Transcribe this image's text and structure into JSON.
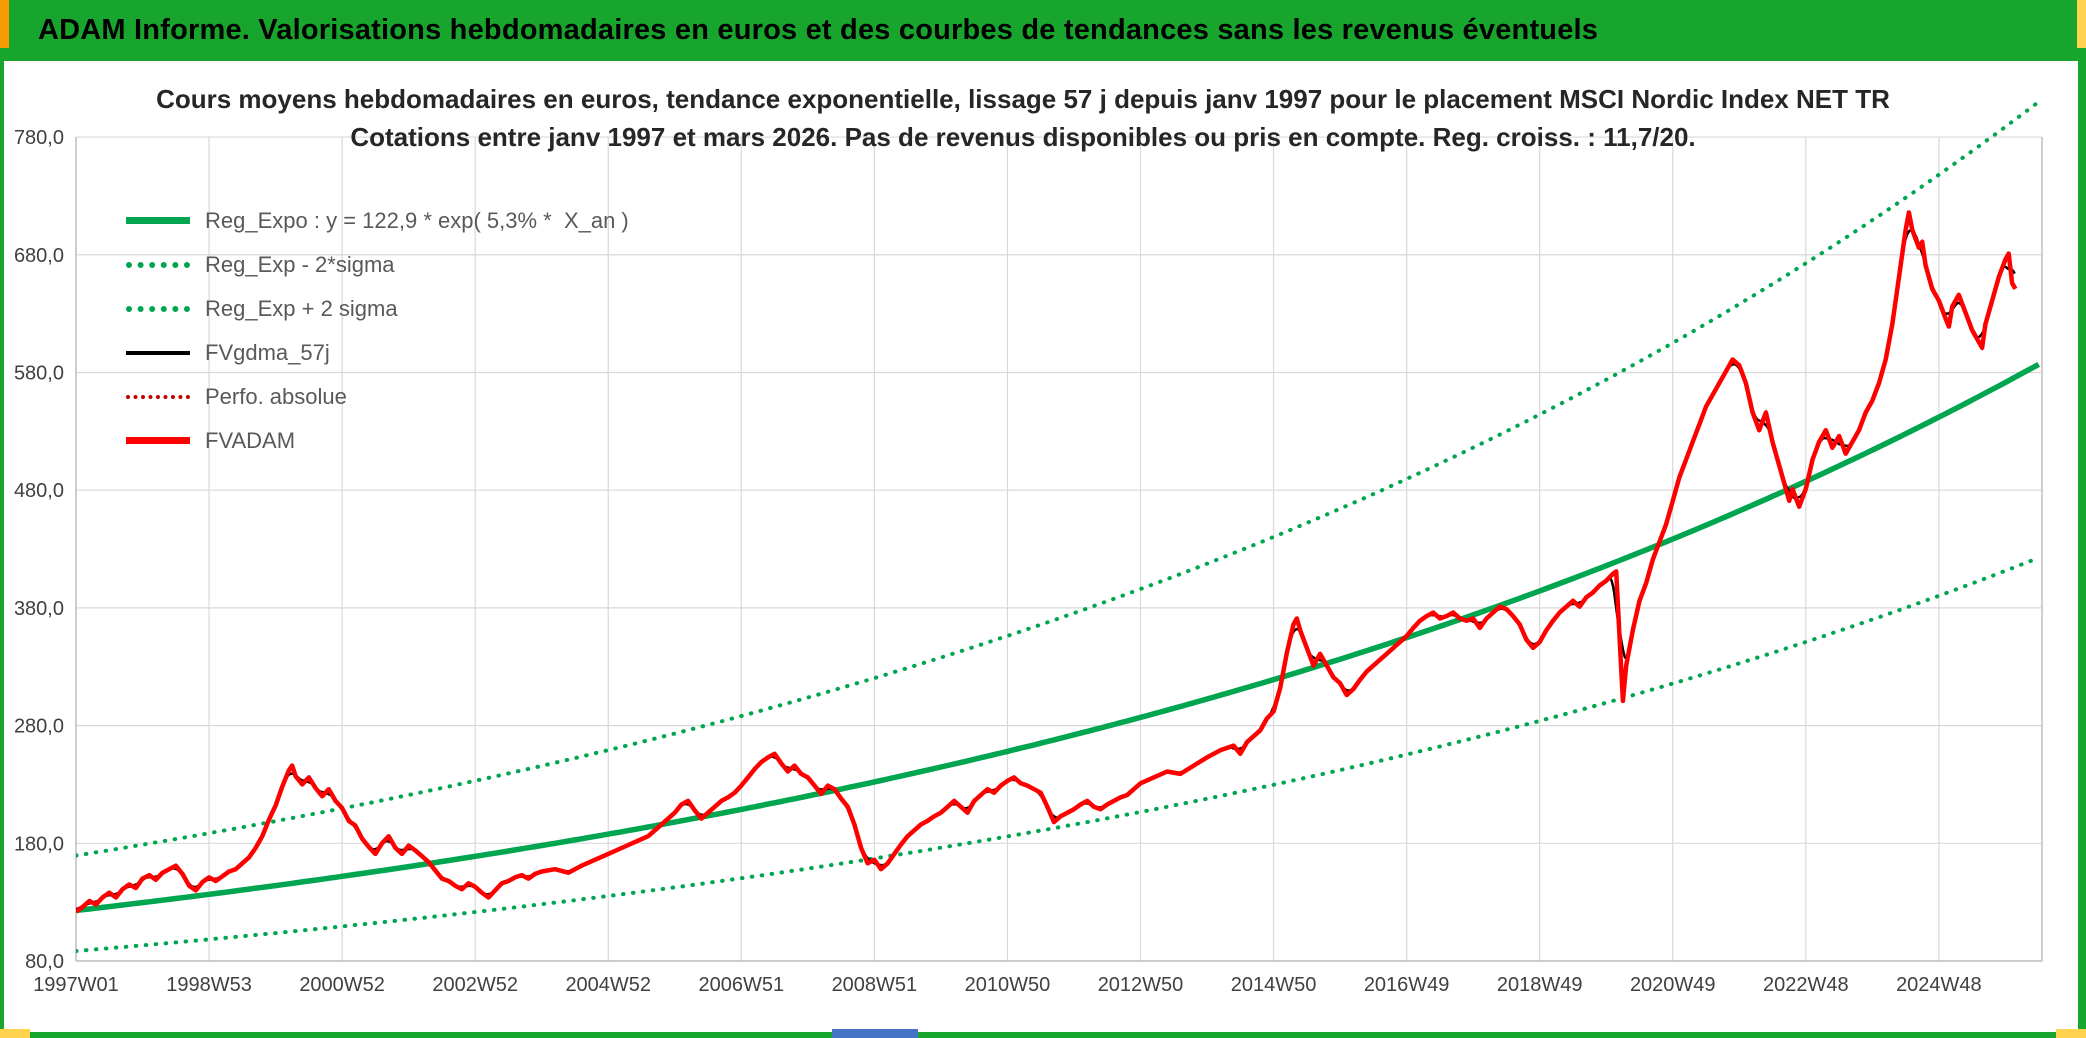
{
  "header": {
    "title": "ADAM Informe. Valorisations hebdomadaires en euros et des courbes de tendances sans les revenus éventuels"
  },
  "colors": {
    "banner_green": "#18a52d",
    "reg_green": "#00a550",
    "series_red": "#ff0000",
    "perfo_dark_red": "#c00000",
    "smooth_black": "#000000",
    "grid": "#d9d9d9",
    "axis_line": "#bfbfbf",
    "axis_text": "#404040",
    "title_text": "#262626",
    "accent_orange": "#f59b00",
    "accent_yellow": "#ffd34d",
    "accent_blue": "#4472c4"
  },
  "chart_data": {
    "type": "line",
    "title": "Cours moyens hebdomadaires en euros, tendance exponentielle, lissage 57 j depuis janv 1997 pour le placement MSCI Nordic Index NET TR",
    "subtitle": "Cotations entre janv 1997 et mars 2026. Pas de revenus disponibles ou pris en compte. Reg. croiss. : 11,7/20.",
    "grid": true,
    "legend_position": "top-left",
    "x_unit": "years_since_jan_1997",
    "x_axis": {
      "domain": [
        0,
        29.55
      ],
      "ticks": [
        {
          "label": "1997W01",
          "t": 0
        },
        {
          "label": "1998W53",
          "t": 2
        },
        {
          "label": "2000W52",
          "t": 4
        },
        {
          "label": "2002W52",
          "t": 6
        },
        {
          "label": "2004W52",
          "t": 8
        },
        {
          "label": "2006W51",
          "t": 10
        },
        {
          "label": "2008W51",
          "t": 12
        },
        {
          "label": "2010W50",
          "t": 14
        },
        {
          "label": "2012W50",
          "t": 16
        },
        {
          "label": "2014W50",
          "t": 18
        },
        {
          "label": "2016W49",
          "t": 20
        },
        {
          "label": "2018W49",
          "t": 22
        },
        {
          "label": "2020W49",
          "t": 24
        },
        {
          "label": "2022W48",
          "t": 26
        },
        {
          "label": "2024W48",
          "t": 28
        }
      ]
    },
    "y_axis": {
      "domain": [
        76.6,
        820
      ],
      "ticks": [
        {
          "label": "780,0",
          "value": 780
        },
        {
          "label": "680,0",
          "value": 680
        },
        {
          "label": "580,0",
          "value": 580
        },
        {
          "label": "480,0",
          "value": 480
        },
        {
          "label": "380,0",
          "value": 380
        },
        {
          "label": "280,0",
          "value": 280
        },
        {
          "label": "180,0",
          "value": 180
        },
        {
          "label": "80,0",
          "value": 80
        }
      ]
    },
    "legend": [
      {
        "label": "Reg_Expo : y = 122,9 * exp( 5,3% *  X_an )",
        "series": "reg_expo"
      },
      {
        "label": "Reg_Exp - 2*sigma",
        "series": "reg_minus_2sigma"
      },
      {
        "label": "Reg_Exp + 2 sigma",
        "series": "reg_plus_2sigma"
      },
      {
        "label": "FVgdma_57j",
        "series": "fvgdma_57j"
      },
      {
        "label": "Perfo. absolue",
        "series": "perfo_absolue"
      },
      {
        "label": "FVADAM",
        "series": "fvadam"
      }
    ],
    "regression": {
      "coefficient": 122.9,
      "annual_rate_pct": 5.3,
      "upper_band_ratio": 1.38,
      "lower_band_ratio": 0.72,
      "growth_score_label": "11,7/20"
    },
    "smoothing_days": 57,
    "fvadam_points": [
      [
        0.0,
        122
      ],
      [
        0.1,
        126
      ],
      [
        0.2,
        131
      ],
      [
        0.3,
        128
      ],
      [
        0.4,
        134
      ],
      [
        0.5,
        138
      ],
      [
        0.6,
        134
      ],
      [
        0.7,
        141
      ],
      [
        0.8,
        145
      ],
      [
        0.9,
        142
      ],
      [
        1.0,
        150
      ],
      [
        1.1,
        153
      ],
      [
        1.2,
        149
      ],
      [
        1.3,
        155
      ],
      [
        1.4,
        158
      ],
      [
        1.5,
        161
      ],
      [
        1.6,
        154
      ],
      [
        1.7,
        144
      ],
      [
        1.8,
        140
      ],
      [
        1.9,
        147
      ],
      [
        2.0,
        151
      ],
      [
        2.1,
        148
      ],
      [
        2.2,
        152
      ],
      [
        2.3,
        156
      ],
      [
        2.4,
        158
      ],
      [
        2.5,
        163
      ],
      [
        2.6,
        168
      ],
      [
        2.7,
        176
      ],
      [
        2.8,
        186
      ],
      [
        2.9,
        200
      ],
      [
        3.0,
        212
      ],
      [
        3.1,
        228
      ],
      [
        3.2,
        242
      ],
      [
        3.25,
        246
      ],
      [
        3.3,
        237
      ],
      [
        3.4,
        230
      ],
      [
        3.5,
        236
      ],
      [
        3.6,
        227
      ],
      [
        3.7,
        220
      ],
      [
        3.8,
        226
      ],
      [
        3.9,
        216
      ],
      [
        4.0,
        210
      ],
      [
        4.1,
        199
      ],
      [
        4.2,
        195
      ],
      [
        4.3,
        184
      ],
      [
        4.4,
        177
      ],
      [
        4.5,
        171
      ],
      [
        4.6,
        180
      ],
      [
        4.7,
        186
      ],
      [
        4.8,
        176
      ],
      [
        4.9,
        171
      ],
      [
        5.0,
        178
      ],
      [
        5.1,
        174
      ],
      [
        5.2,
        169
      ],
      [
        5.3,
        164
      ],
      [
        5.4,
        157
      ],
      [
        5.5,
        150
      ],
      [
        5.6,
        148
      ],
      [
        5.7,
        144
      ],
      [
        5.8,
        141
      ],
      [
        5.9,
        146
      ],
      [
        6.0,
        143
      ],
      [
        6.1,
        138
      ],
      [
        6.2,
        134
      ],
      [
        6.3,
        140
      ],
      [
        6.4,
        146
      ],
      [
        6.5,
        148
      ],
      [
        6.6,
        151
      ],
      [
        6.7,
        153
      ],
      [
        6.8,
        150
      ],
      [
        6.9,
        154
      ],
      [
        7.0,
        156
      ],
      [
        7.2,
        158
      ],
      [
        7.4,
        155
      ],
      [
        7.6,
        161
      ],
      [
        7.8,
        166
      ],
      [
        8.0,
        171
      ],
      [
        8.2,
        176
      ],
      [
        8.4,
        181
      ],
      [
        8.6,
        186
      ],
      [
        8.8,
        196
      ],
      [
        9.0,
        206
      ],
      [
        9.1,
        213
      ],
      [
        9.2,
        216
      ],
      [
        9.3,
        208
      ],
      [
        9.4,
        201
      ],
      [
        9.5,
        206
      ],
      [
        9.6,
        211
      ],
      [
        9.7,
        216
      ],
      [
        9.8,
        219
      ],
      [
        9.9,
        223
      ],
      [
        10.0,
        229
      ],
      [
        10.1,
        236
      ],
      [
        10.2,
        243
      ],
      [
        10.3,
        249
      ],
      [
        10.4,
        253
      ],
      [
        10.5,
        256
      ],
      [
        10.6,
        248
      ],
      [
        10.7,
        241
      ],
      [
        10.8,
        246
      ],
      [
        10.9,
        239
      ],
      [
        11.0,
        236
      ],
      [
        11.1,
        229
      ],
      [
        11.2,
        222
      ],
      [
        11.3,
        229
      ],
      [
        11.4,
        226
      ],
      [
        11.5,
        218
      ],
      [
        11.6,
        211
      ],
      [
        11.7,
        196
      ],
      [
        11.8,
        176
      ],
      [
        11.9,
        163
      ],
      [
        12.0,
        166
      ],
      [
        12.1,
        158
      ],
      [
        12.2,
        163
      ],
      [
        12.3,
        171
      ],
      [
        12.4,
        179
      ],
      [
        12.5,
        186
      ],
      [
        12.6,
        191
      ],
      [
        12.7,
        196
      ],
      [
        12.8,
        199
      ],
      [
        12.9,
        203
      ],
      [
        13.0,
        206
      ],
      [
        13.1,
        211
      ],
      [
        13.2,
        216
      ],
      [
        13.3,
        211
      ],
      [
        13.4,
        206
      ],
      [
        13.5,
        216
      ],
      [
        13.6,
        221
      ],
      [
        13.7,
        226
      ],
      [
        13.8,
        223
      ],
      [
        13.9,
        229
      ],
      [
        14.0,
        233
      ],
      [
        14.1,
        236
      ],
      [
        14.2,
        231
      ],
      [
        14.3,
        229
      ],
      [
        14.4,
        226
      ],
      [
        14.5,
        223
      ],
      [
        14.6,
        211
      ],
      [
        14.7,
        198
      ],
      [
        14.8,
        203
      ],
      [
        14.9,
        206
      ],
      [
        15.0,
        209
      ],
      [
        15.1,
        213
      ],
      [
        15.2,
        216
      ],
      [
        15.3,
        211
      ],
      [
        15.4,
        209
      ],
      [
        15.5,
        213
      ],
      [
        15.6,
        216
      ],
      [
        15.7,
        219
      ],
      [
        15.8,
        221
      ],
      [
        15.9,
        226
      ],
      [
        16.0,
        231
      ],
      [
        16.2,
        236
      ],
      [
        16.4,
        241
      ],
      [
        16.6,
        239
      ],
      [
        16.8,
        246
      ],
      [
        17.0,
        253
      ],
      [
        17.2,
        259
      ],
      [
        17.4,
        263
      ],
      [
        17.5,
        256
      ],
      [
        17.6,
        266
      ],
      [
        17.8,
        276
      ],
      [
        17.9,
        286
      ],
      [
        18.0,
        292
      ],
      [
        18.1,
        312
      ],
      [
        18.2,
        342
      ],
      [
        18.3,
        366
      ],
      [
        18.35,
        371
      ],
      [
        18.4,
        361
      ],
      [
        18.5,
        346
      ],
      [
        18.6,
        331
      ],
      [
        18.7,
        341
      ],
      [
        18.8,
        331
      ],
      [
        18.9,
        321
      ],
      [
        19.0,
        316
      ],
      [
        19.1,
        306
      ],
      [
        19.2,
        311
      ],
      [
        19.3,
        319
      ],
      [
        19.4,
        326
      ],
      [
        19.5,
        331
      ],
      [
        19.6,
        336
      ],
      [
        19.7,
        341
      ],
      [
        19.8,
        346
      ],
      [
        19.9,
        351
      ],
      [
        20.0,
        356
      ],
      [
        20.1,
        363
      ],
      [
        20.2,
        369
      ],
      [
        20.3,
        373
      ],
      [
        20.4,
        376
      ],
      [
        20.5,
        371
      ],
      [
        20.6,
        373
      ],
      [
        20.7,
        376
      ],
      [
        20.8,
        371
      ],
      [
        20.9,
        369
      ],
      [
        21.0,
        371
      ],
      [
        21.1,
        363
      ],
      [
        21.2,
        371
      ],
      [
        21.3,
        376
      ],
      [
        21.4,
        381
      ],
      [
        21.5,
        379
      ],
      [
        21.6,
        373
      ],
      [
        21.7,
        366
      ],
      [
        21.8,
        353
      ],
      [
        21.9,
        346
      ],
      [
        22.0,
        351
      ],
      [
        22.1,
        361
      ],
      [
        22.2,
        369
      ],
      [
        22.3,
        376
      ],
      [
        22.4,
        381
      ],
      [
        22.5,
        386
      ],
      [
        22.6,
        381
      ],
      [
        22.7,
        389
      ],
      [
        22.8,
        393
      ],
      [
        22.9,
        399
      ],
      [
        23.0,
        403
      ],
      [
        23.1,
        409
      ],
      [
        23.15,
        411
      ],
      [
        23.2,
        356
      ],
      [
        23.25,
        301
      ],
      [
        23.3,
        331
      ],
      [
        23.4,
        361
      ],
      [
        23.5,
        386
      ],
      [
        23.6,
        401
      ],
      [
        23.7,
        421
      ],
      [
        23.8,
        436
      ],
      [
        23.9,
        451
      ],
      [
        24.0,
        471
      ],
      [
        24.1,
        491
      ],
      [
        24.2,
        506
      ],
      [
        24.3,
        521
      ],
      [
        24.4,
        536
      ],
      [
        24.5,
        551
      ],
      [
        24.6,
        561
      ],
      [
        24.7,
        571
      ],
      [
        24.8,
        581
      ],
      [
        24.9,
        591
      ],
      [
        25.0,
        586
      ],
      [
        25.1,
        571
      ],
      [
        25.2,
        546
      ],
      [
        25.3,
        531
      ],
      [
        25.4,
        546
      ],
      [
        25.5,
        521
      ],
      [
        25.6,
        501
      ],
      [
        25.7,
        481
      ],
      [
        25.75,
        471
      ],
      [
        25.8,
        481
      ],
      [
        25.9,
        466
      ],
      [
        26.0,
        481
      ],
      [
        26.1,
        506
      ],
      [
        26.2,
        521
      ],
      [
        26.3,
        531
      ],
      [
        26.4,
        516
      ],
      [
        26.5,
        526
      ],
      [
        26.6,
        511
      ],
      [
        26.7,
        521
      ],
      [
        26.8,
        531
      ],
      [
        26.9,
        546
      ],
      [
        27.0,
        556
      ],
      [
        27.1,
        571
      ],
      [
        27.2,
        591
      ],
      [
        27.3,
        621
      ],
      [
        27.4,
        661
      ],
      [
        27.5,
        701
      ],
      [
        27.55,
        716
      ],
      [
        27.6,
        701
      ],
      [
        27.7,
        686
      ],
      [
        27.75,
        691
      ],
      [
        27.8,
        671
      ],
      [
        27.9,
        651
      ],
      [
        28.0,
        641
      ],
      [
        28.1,
        626
      ],
      [
        28.15,
        619
      ],
      [
        28.2,
        636
      ],
      [
        28.3,
        646
      ],
      [
        28.4,
        631
      ],
      [
        28.5,
        616
      ],
      [
        28.6,
        606
      ],
      [
        28.65,
        601
      ],
      [
        28.7,
        621
      ],
      [
        28.8,
        641
      ],
      [
        28.9,
        661
      ],
      [
        29.0,
        676
      ],
      [
        29.05,
        681
      ],
      [
        29.1,
        656
      ],
      [
        29.15,
        651
      ]
    ]
  }
}
